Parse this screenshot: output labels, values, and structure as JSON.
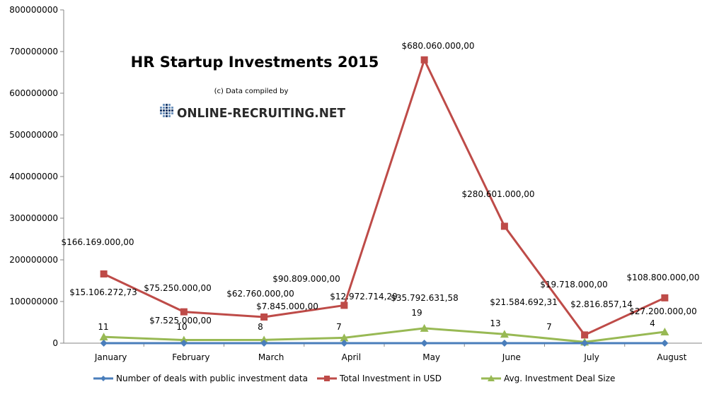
{
  "chart_data": {
    "type": "line",
    "title": "HR Startup Investments 2015",
    "subtitle": "(c) Data compiled by",
    "logo_text": "ONLINE-RECRUITING.NET",
    "categories": [
      "January",
      "February",
      "March",
      "April",
      "May",
      "June",
      "July",
      "August"
    ],
    "ylim": [
      0,
      800000000
    ],
    "yticks": [
      "0",
      "100000000",
      "200000000",
      "300000000",
      "400000000",
      "500000000",
      "600000000",
      "700000000",
      "800000000"
    ],
    "grid": false,
    "legend_position": "bottom",
    "series": [
      {
        "name": "Number of deals with public investment data",
        "color": "#4a7ebb",
        "marker": "diamond",
        "values": [
          11,
          10,
          8,
          7,
          19,
          13,
          7,
          4
        ],
        "labels": [
          "11",
          "10",
          "8",
          "7",
          "19",
          "13",
          "7",
          "4"
        ]
      },
      {
        "name": "Total Investment in USD",
        "color": "#be4b48",
        "marker": "square",
        "values": [
          166169000,
          75250000,
          62760000,
          90809000,
          680060000,
          280601000,
          19718000,
          108800000
        ],
        "labels": [
          "$166.169.000,00",
          "$75.250.000,00",
          "$62.760.000,00",
          "$90.809.000,00",
          "$680.060.000,00",
          "$280.601.000,00",
          "$19.718.000,00",
          "$108.800.000,00"
        ]
      },
      {
        "name": "Avg. Investment Deal Size",
        "color": "#98b954",
        "marker": "triangle",
        "values": [
          15106272.73,
          7525000,
          7845000,
          12972714.29,
          35792631.58,
          21584692.31,
          2816857.14,
          27200000
        ],
        "labels": [
          "$15.106.272,73",
          "$7.525.000,00",
          "$7.845.000,00",
          "$12.972.714,29",
          "$35.792.631,58",
          "$21.584.692,31",
          "$2.816.857,14",
          "$27.200.000,00"
        ]
      }
    ]
  }
}
